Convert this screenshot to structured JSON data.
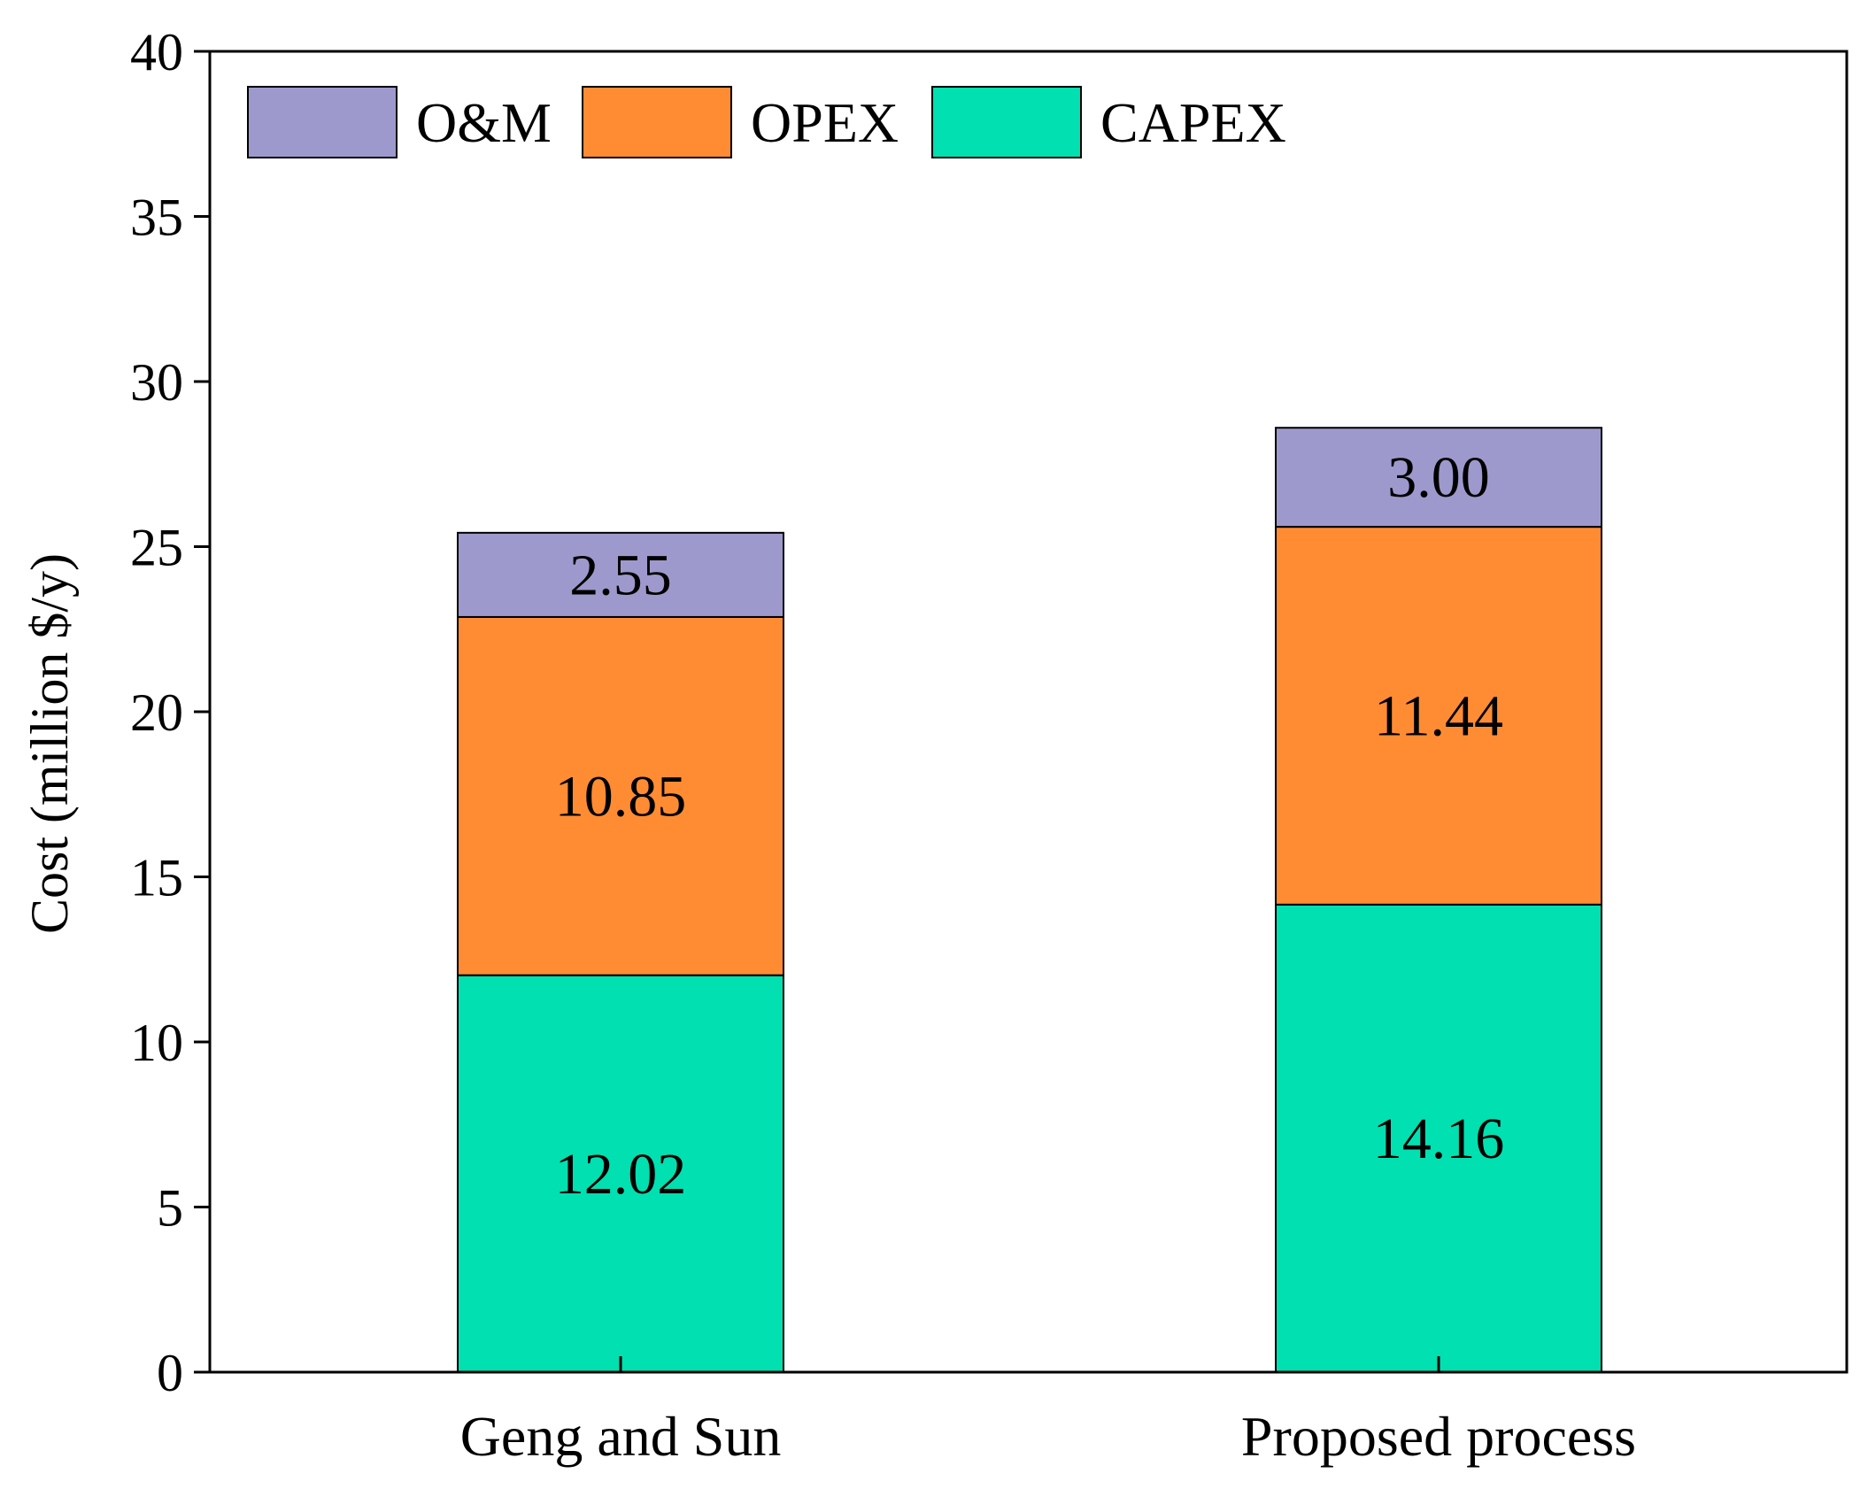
{
  "chart_data": {
    "type": "stacked-bar",
    "title": "",
    "xlabel": "",
    "ylabel": "Cost (million $/y)",
    "ylim": [
      0,
      40
    ],
    "yticks": [
      0,
      5,
      10,
      15,
      20,
      25,
      30,
      35,
      40
    ],
    "grid": false,
    "legend_position": "top-left",
    "categories": [
      "Geng and Sun",
      "Proposed process"
    ],
    "series": [
      {
        "name": "CAPEX",
        "color": "#00E0B0",
        "values": [
          12.02,
          14.16
        ],
        "labels": [
          "12.02",
          "14.16"
        ]
      },
      {
        "name": "OPEX",
        "color": "#FF8C33",
        "values": [
          10.85,
          11.44
        ],
        "labels": [
          "10.85",
          "11.44"
        ]
      },
      {
        "name": "O&M",
        "color": "#9E99CC",
        "values": [
          2.55,
          3.0
        ],
        "labels": [
          "2.55",
          "3.00"
        ]
      }
    ],
    "legend_order": [
      "O&M",
      "OPEX",
      "CAPEX"
    ]
  }
}
